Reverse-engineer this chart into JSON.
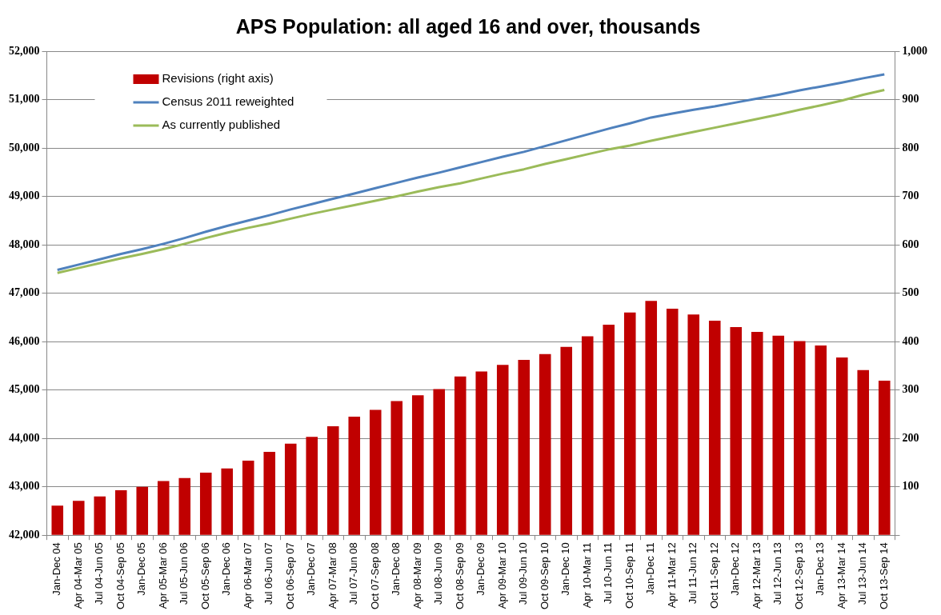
{
  "chart_data": {
    "type": "line",
    "title": "APS Population: all aged 16 and over, thousands",
    "categories": [
      "Jan-Dec 04",
      "Apr 04-Mar 05",
      "Jul 04-Jun 05",
      "Oct 04-Sep 05",
      "Jan-Dec 05",
      "Apr 05-Mar 06",
      "Jul 05-Jun 06",
      "Oct 05-Sep 06",
      "Jan-Dec 06",
      "Apr 06-Mar 07",
      "Jul 06-Jun 07",
      "Oct 06-Sep 07",
      "Jan-Dec 07",
      "Apr 07-Mar 08",
      "Jul 07-Jun 08",
      "Oct 07-Sep 08",
      "Jan-Dec 08",
      "Apr 08-Mar 09",
      "Jul 08-Jun 09",
      "Oct 08-Sep 09",
      "Jan-Dec 09",
      "Apr 09-Mar 10",
      "Jul 09-Jun 10",
      "Oct 09-Sep 10",
      "Jan-Dec 10",
      "Apr 10-Mar 11",
      "Jul 10-Jun 11",
      "Oct 10-Sep 11",
      "Jan-Dec 11",
      "Apr 11-Mar 12",
      "Jul 11-Jun 12",
      "Oct 11-Sep 12",
      "Jan-Dec 12",
      "Apr 12-Mar 13",
      "Jul 12-Jun 13",
      "Oct 12-Sep 13",
      "Jan-Dec 13",
      "Apr 13-Mar 14",
      "Jul 13-Jun 14",
      "Oct 13-Sep 14"
    ],
    "series": [
      {
        "name": "Revisions (right axis)",
        "type": "bar",
        "axis": "y2",
        "color": "#c00000",
        "values": [
          61,
          71,
          80,
          93,
          100,
          112,
          118,
          129,
          138,
          154,
          172,
          189,
          203,
          225,
          245,
          259,
          277,
          289,
          302,
          328,
          338,
          352,
          362,
          374,
          389,
          411,
          435,
          460,
          484,
          468,
          456,
          443,
          430,
          420,
          412,
          401,
          392,
          367,
          341,
          319
        ]
      },
      {
        "name": "Census 2011 reweighted",
        "color": "#4f81bd",
        "values": [
          47480,
          47590,
          47700,
          47810,
          47910,
          48020,
          48140,
          48270,
          48390,
          48500,
          48610,
          48730,
          48840,
          48950,
          49060,
          49170,
          49280,
          49390,
          49490,
          49600,
          49710,
          49820,
          49920,
          50040,
          50160,
          50280,
          50400,
          50510,
          50630,
          50710,
          50790,
          50860,
          50940,
          51020,
          51100,
          51190,
          51270,
          51350,
          51440,
          51520
        ]
      },
      {
        "name": "As currently published",
        "color": "#9bbb59",
        "values": [
          47420,
          47520,
          47620,
          47720,
          47810,
          47910,
          48020,
          48140,
          48250,
          48350,
          48440,
          48540,
          48640,
          48730,
          48820,
          48910,
          49000,
          49100,
          49190,
          49270,
          49370,
          49470,
          49560,
          49670,
          49770,
          49870,
          49970,
          50050,
          50150,
          50240,
          50330,
          50420,
          50510,
          50600,
          50690,
          50790,
          50880,
          50980,
          51100,
          51200
        ]
      }
    ],
    "ylim": [
      42000,
      52000
    ],
    "yticks": [
      {
        "value": 42000,
        "label": "42,000"
      },
      {
        "value": 43000,
        "label": "43,000"
      },
      {
        "value": 44000,
        "label": "44,000"
      },
      {
        "value": 45000,
        "label": "45,000"
      },
      {
        "value": 46000,
        "label": "46,000"
      },
      {
        "value": 47000,
        "label": "47,000"
      },
      {
        "value": 48000,
        "label": "48,000"
      },
      {
        "value": 49000,
        "label": "49,000"
      },
      {
        "value": 50000,
        "label": "50,000"
      },
      {
        "value": 51000,
        "label": "51,000"
      },
      {
        "value": 52000,
        "label": "52,000"
      }
    ],
    "y2lim": [
      0,
      1000
    ],
    "y2ticks": [
      {
        "value": 0,
        "label": null
      },
      100,
      200,
      300,
      400,
      500,
      600,
      700,
      800,
      900,
      {
        "value": 1000,
        "label": "1,000"
      }
    ],
    "grid": "y",
    "legend": "top left",
    "marker": "none",
    "line_style": "solid"
  }
}
